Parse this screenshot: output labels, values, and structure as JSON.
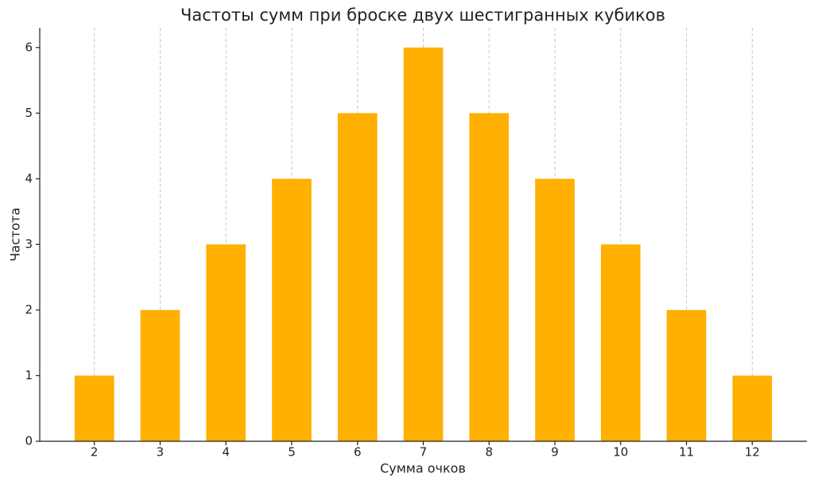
{
  "chart_data": {
    "type": "bar",
    "title": "Частоты сумм при броске двух шестигранных кубиков",
    "x_label": "Сумма очков",
    "y_label": "Частота",
    "x": [
      2,
      3,
      4,
      5,
      6,
      7,
      8,
      9,
      10,
      11,
      12
    ],
    "values": [
      1,
      2,
      3,
      4,
      5,
      6,
      5,
      4,
      3,
      2,
      1
    ],
    "color": "#ffb000",
    "xlim": [
      1.17,
      12.83
    ],
    "xticks": [
      2,
      3,
      4,
      5,
      6,
      7,
      8,
      9,
      10,
      11,
      12
    ],
    "ylim": [
      0,
      6.3
    ],
    "yticks": [
      0,
      1,
      2,
      3,
      4,
      5,
      6
    ],
    "grid": "x"
  }
}
